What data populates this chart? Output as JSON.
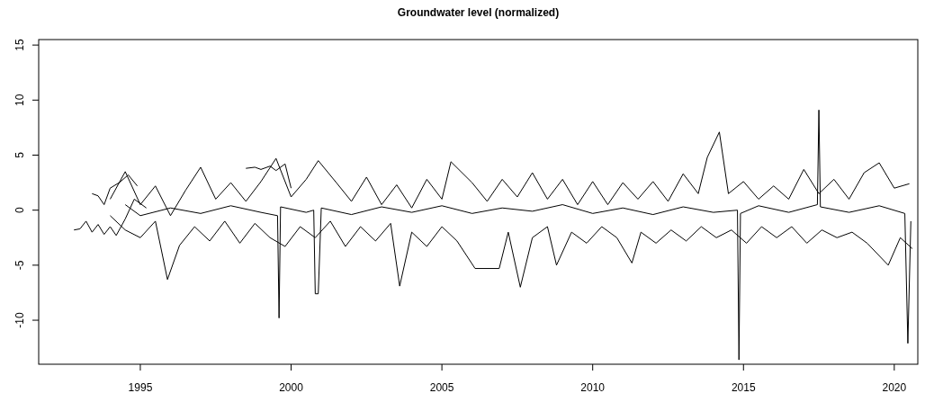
{
  "chart_data": {
    "type": "line",
    "title": "Groundwater level (normalized)",
    "xlim": [
      1991.63,
      2020.78
    ],
    "xticks": [
      1995,
      2000,
      2005,
      2010,
      2015,
      2020
    ],
    "ylim": [
      -14,
      15.5
    ],
    "yticks": [
      -10,
      -5,
      0,
      5,
      10,
      15
    ],
    "grid": false,
    "marker": "none",
    "line_style": "solid",
    "series": [
      {
        "color": "#000000",
        "x": [
          1994.0,
          1994.5,
          1995.0,
          1995.5,
          1996.0,
          1996.5,
          1997.0,
          1997.5,
          1998.0,
          1998.5,
          1999.0,
          1999.5,
          2000.0,
          2000.5,
          2000.9,
          2001.5,
          2002.0,
          2002.5,
          2003.0,
          2003.5,
          2004.0,
          2004.5,
          2005.0,
          2005.3,
          2006.0,
          2006.5,
          2007.0,
          2007.5,
          2008.0,
          2008.5,
          2009.0,
          2009.5,
          2010.0,
          2010.5,
          2011.0,
          2011.5,
          2012.0,
          2012.5,
          2013.0,
          2013.5,
          2013.8,
          2014.2,
          2014.5,
          2015.0,
          2015.5,
          2016.0,
          2016.5,
          2017.0,
          2017.5,
          2018.0,
          2018.5,
          2019.0,
          2019.5,
          2020.0,
          2020.5
        ],
        "values": [
          1.0,
          3.5,
          0.5,
          2.2,
          -0.5,
          1.8,
          3.9,
          1.0,
          2.5,
          0.8,
          2.6,
          4.7,
          1.2,
          2.8,
          4.5,
          2.5,
          0.8,
          3.0,
          0.5,
          2.3,
          0.2,
          2.8,
          1.0,
          4.4,
          2.5,
          0.8,
          2.8,
          1.2,
          3.4,
          1.0,
          2.8,
          0.5,
          2.6,
          0.5,
          2.5,
          1.0,
          2.6,
          0.8,
          3.3,
          1.5,
          4.8,
          7.1,
          1.5,
          2.6,
          1.0,
          2.2,
          1.0,
          3.7,
          1.5,
          2.8,
          1.0,
          3.4,
          4.3,
          2.0,
          2.4
        ]
      },
      {
        "color": "#000000",
        "x": [
          1994.0,
          1994.5,
          1995.0,
          1995.5,
          1995.9,
          1996.3,
          1996.8,
          1997.3,
          1997.8,
          1998.3,
          1998.8,
          1999.3,
          1999.8,
          2000.3,
          2000.8,
          2001.3,
          2001.8,
          2002.3,
          2002.8,
          2003.3,
          2003.6,
          2004.0,
          2004.5,
          2005.0,
          2005.5,
          2006.1,
          2006.9,
          2007.2,
          2007.6,
          2008.0,
          2008.5,
          2008.8,
          2009.3,
          2009.8,
          2010.3,
          2010.8,
          2011.3,
          2011.6,
          2012.1,
          2012.6,
          2013.1,
          2013.6,
          2014.1,
          2014.6,
          2015.1,
          2015.6,
          2016.1,
          2016.6,
          2017.1,
          2017.6,
          2018.1,
          2018.6,
          2019.1,
          2019.8,
          2020.2,
          2020.6
        ],
        "values": [
          -0.5,
          -1.8,
          -2.5,
          -1.0,
          -6.3,
          -3.2,
          -1.5,
          -2.8,
          -1.0,
          -3.0,
          -1.2,
          -2.5,
          -3.3,
          -1.5,
          -2.5,
          -1.0,
          -3.3,
          -1.5,
          -2.8,
          -1.2,
          -6.9,
          -2.0,
          -3.3,
          -1.5,
          -2.8,
          -5.3,
          -5.3,
          -2.0,
          -7.0,
          -2.5,
          -1.5,
          -5.0,
          -2.0,
          -3.0,
          -1.5,
          -2.5,
          -4.8,
          -2.0,
          -3.0,
          -1.8,
          -2.8,
          -1.5,
          -2.5,
          -1.8,
          -3.0,
          -1.5,
          -2.5,
          -1.5,
          -3.0,
          -1.8,
          -2.5,
          -2.0,
          -3.0,
          -5.0,
          -2.5,
          -3.5
        ]
      },
      {
        "color": "#000000",
        "x": [
          1994.5,
          1995.0,
          1996.0,
          1997.0,
          1998.0,
          1999.0,
          1999.55,
          1999.6,
          1999.65,
          2000.5,
          2000.75,
          2000.8,
          2000.9,
          2001.0,
          2002.0,
          2003.0,
          2004.0,
          2005.0,
          2006.0,
          2007.0,
          2008.0,
          2009.0,
          2010.0,
          2011.0,
          2012.0,
          2013.0,
          2014.0,
          2014.8,
          2014.85,
          2014.9,
          2015.5,
          2016.5,
          2017.45,
          2017.5,
          2017.55,
          2018.5,
          2019.5,
          2020.35,
          2020.45,
          2020.55
        ],
        "values": [
          0.5,
          -0.5,
          0.2,
          -0.3,
          0.4,
          -0.2,
          -0.5,
          -9.8,
          0.3,
          -0.2,
          0,
          -7.6,
          -7.6,
          0.2,
          -0.4,
          0.3,
          -0.2,
          0.4,
          -0.3,
          0.2,
          -0.1,
          0.5,
          -0.3,
          0.2,
          -0.4,
          0.3,
          -0.2,
          0,
          -13.6,
          -0.3,
          0.4,
          -0.2,
          0.5,
          9.1,
          0.3,
          -0.2,
          0.4,
          -0.3,
          -12.1,
          -1.0
        ]
      },
      {
        "color": "#000000",
        "x": [
          1992.8,
          1993.0,
          1993.2,
          1993.4,
          1993.6,
          1993.8,
          1994.0,
          1994.2,
          1994.5,
          1994.8,
          1995.2
        ],
        "values": [
          -1.8,
          -1.7,
          -1.0,
          -2.0,
          -1.3,
          -2.2,
          -1.5,
          -2.3,
          -0.8,
          1.0,
          0.2
        ]
      },
      {
        "color": "#000000",
        "x": [
          1998.5,
          1998.8,
          1999.0,
          1999.3,
          1999.5,
          1999.8,
          2000.0
        ],
        "values": [
          3.8,
          3.9,
          3.7,
          4.0,
          3.6,
          4.2,
          2.0
        ]
      },
      {
        "color": "#000000",
        "x": [
          1993.4,
          1993.6,
          1993.8,
          1994.0,
          1994.3,
          1994.6,
          1994.9
        ],
        "values": [
          1.5,
          1.3,
          0.5,
          2.0,
          2.5,
          3.2,
          2.2
        ]
      }
    ]
  }
}
